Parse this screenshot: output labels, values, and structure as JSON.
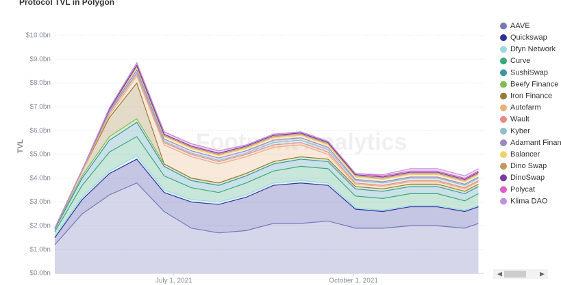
{
  "chart_data": {
    "type": "stacked_area",
    "title": "Protocol TVL in Polygon",
    "y_label": "TVL",
    "watermark": "Footprint Analytics",
    "x": [
      "2021-05-01",
      "2021-05-15",
      "2021-05-29",
      "2021-06-12",
      "2021-06-26",
      "2021-07-10",
      "2021-07-24",
      "2021-08-07",
      "2021-08-21",
      "2021-09-04",
      "2021-09-18",
      "2021-10-02",
      "2021-10-16",
      "2021-10-30",
      "2021-11-13",
      "2021-11-27",
      "2021-12-04"
    ],
    "xlim": [
      "2021-05-01",
      "2021-12-07"
    ],
    "xticks": [
      {
        "value": "2021-07-01",
        "label": "July 1, 2021"
      },
      {
        "value": "2021-10-01",
        "label": "October 1, 2021"
      }
    ],
    "ylim": [
      0,
      10.4
    ],
    "yticks": [
      {
        "value": 0,
        "label": "$0.0bn"
      },
      {
        "value": 1,
        "label": "$1.0bn"
      },
      {
        "value": 2,
        "label": "$2.0bn"
      },
      {
        "value": 3,
        "label": "$3.0bn"
      },
      {
        "value": 4,
        "label": "$4.0bn"
      },
      {
        "value": 5,
        "label": "$5.0bn"
      },
      {
        "value": 6,
        "label": "$6.0bn"
      },
      {
        "value": 7,
        "label": "$7.0bn"
      },
      {
        "value": 8,
        "label": "$8.0bn"
      },
      {
        "value": 9,
        "label": "$9.0bn"
      },
      {
        "value": 10,
        "label": "$10.0bn"
      }
    ],
    "grid": true,
    "series": [
      {
        "name": "AAVE",
        "color": "#7478b8",
        "values": [
          1.2,
          2.5,
          3.3,
          3.8,
          2.6,
          1.9,
          1.7,
          1.8,
          2.1,
          2.1,
          2.2,
          1.9,
          1.9,
          2.0,
          2.0,
          1.9,
          2.1
        ]
      },
      {
        "name": "Quickswap",
        "color": "#2d2f9e",
        "values": [
          0.3,
          0.6,
          0.9,
          1.0,
          0.8,
          1.1,
          1.2,
          1.4,
          1.6,
          1.7,
          1.5,
          0.8,
          0.7,
          0.8,
          0.8,
          0.7,
          0.7
        ]
      },
      {
        "name": "Dfyn Network",
        "color": "#9ad6e0",
        "values": [
          0.05,
          0.1,
          0.1,
          0.15,
          0.1,
          0.1,
          0.1,
          0.1,
          0.1,
          0.1,
          0.1,
          0.05,
          0.05,
          0.05,
          0.05,
          0.05,
          0.05
        ]
      },
      {
        "name": "Curve",
        "color": "#3ba87a",
        "values": [
          0.2,
          0.5,
          0.8,
          0.8,
          0.6,
          0.5,
          0.4,
          0.5,
          0.5,
          0.6,
          0.6,
          0.5,
          0.5,
          0.5,
          0.5,
          0.4,
          0.5
        ]
      },
      {
        "name": "SushiSwap",
        "color": "#3c93a8",
        "values": [
          0.1,
          0.3,
          0.5,
          0.6,
          0.4,
          0.3,
          0.3,
          0.3,
          0.3,
          0.3,
          0.3,
          0.3,
          0.3,
          0.3,
          0.3,
          0.3,
          0.3
        ]
      },
      {
        "name": "Beefy Finance",
        "color": "#7fbf50",
        "values": [
          0.05,
          0.1,
          0.15,
          0.15,
          0.1,
          0.1,
          0.1,
          0.1,
          0.1,
          0.1,
          0.1,
          0.1,
          0.1,
          0.1,
          0.1,
          0.1,
          0.1
        ]
      },
      {
        "name": "Iron Finance",
        "color": "#9a7a3a",
        "values": [
          0,
          0.2,
          0.8,
          1.5,
          0,
          0,
          0,
          0,
          0,
          0,
          0,
          0,
          0,
          0,
          0,
          0,
          0
        ]
      },
      {
        "name": "Autofarm",
        "color": "#e8b07a",
        "values": [
          0,
          0,
          0.1,
          0.3,
          0.8,
          0.9,
          0.8,
          0.7,
          0.6,
          0.5,
          0.2,
          0.1,
          0.1,
          0.1,
          0.1,
          0.1,
          0.1
        ]
      },
      {
        "name": "Wault",
        "color": "#e88a86",
        "values": [
          0,
          0.05,
          0.1,
          0.1,
          0.1,
          0.1,
          0.1,
          0.1,
          0.1,
          0.1,
          0.1,
          0.05,
          0.05,
          0.05,
          0.05,
          0.05,
          0.05
        ]
      },
      {
        "name": "Kyber",
        "color": "#8fbfc8",
        "values": [
          0,
          0,
          0.05,
          0.05,
          0.05,
          0.05,
          0.05,
          0.05,
          0.1,
          0.1,
          0.1,
          0.1,
          0.1,
          0.1,
          0.1,
          0.1,
          0.1
        ]
      },
      {
        "name": "Adamant Finance",
        "color": "#9a88c0",
        "values": [
          0,
          0,
          0.05,
          0.1,
          0.1,
          0.1,
          0.1,
          0.1,
          0.1,
          0.1,
          0.1,
          0.05,
          0.05,
          0.05,
          0.05,
          0.05,
          0.05
        ]
      },
      {
        "name": "Balancer",
        "color": "#f0d070",
        "values": [
          0,
          0,
          0.05,
          0.1,
          0.1,
          0.1,
          0.1,
          0.1,
          0.1,
          0.1,
          0.1,
          0.1,
          0.1,
          0.1,
          0.1,
          0.1,
          0.1
        ]
      },
      {
        "name": "Dino Swap",
        "color": "#c09860",
        "values": [
          0,
          0,
          0,
          0.05,
          0.05,
          0.05,
          0.05,
          0.05,
          0.05,
          0.05,
          0.05,
          0.05,
          0.05,
          0.05,
          0.05,
          0.05,
          0.05
        ]
      },
      {
        "name": "DinoSwap",
        "color": "#7a3aa0",
        "values": [
          0,
          0,
          0,
          0.05,
          0.05,
          0.05,
          0.05,
          0.05,
          0.05,
          0.05,
          0.05,
          0.05,
          0.05,
          0.05,
          0.05,
          0.05,
          0.05
        ]
      },
      {
        "name": "Polycat",
        "color": "#e060c0",
        "values": [
          0,
          0,
          0.05,
          0.1,
          0.1,
          0.1,
          0.1,
          0.05,
          0.05,
          0.05,
          0.05,
          0.05,
          0.05,
          0.05,
          0.05,
          0.05,
          0.05
        ]
      },
      {
        "name": "Klima DAO",
        "color": "#c090e0",
        "values": [
          0,
          0,
          0,
          0,
          0,
          0,
          0,
          0,
          0,
          0,
          0,
          0,
          0.05,
          0.1,
          0.1,
          0.1,
          0.1
        ]
      }
    ]
  }
}
